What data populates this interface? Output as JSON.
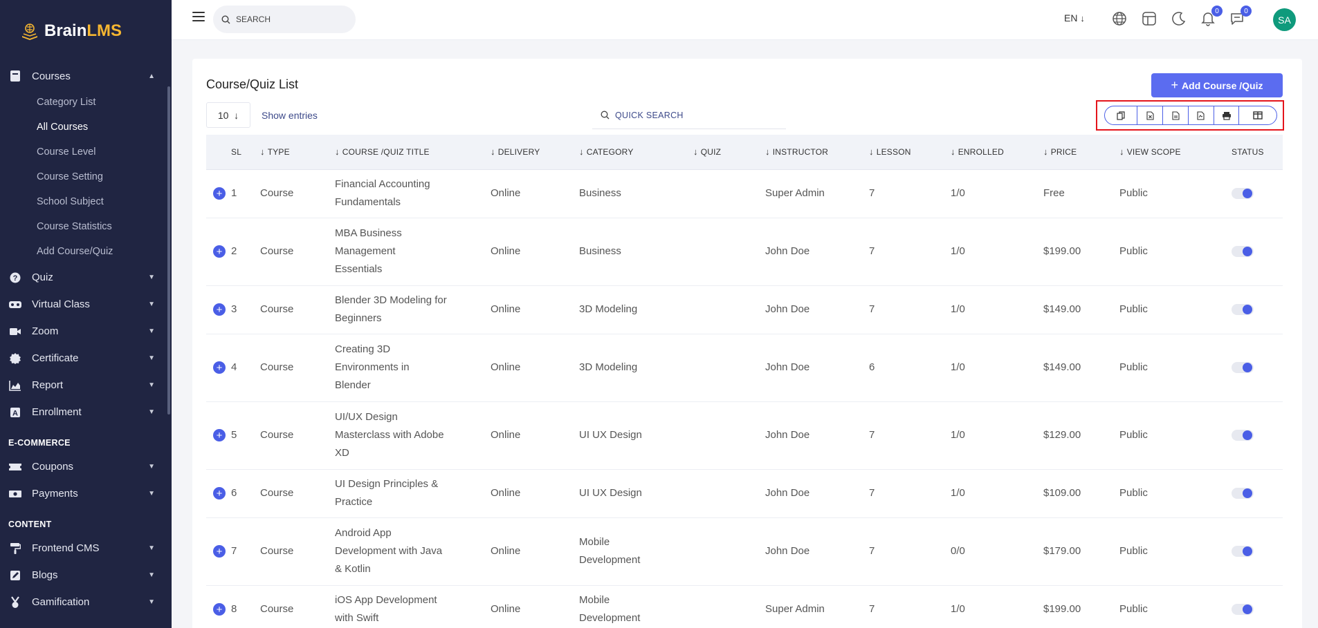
{
  "app": {
    "brand_main": "Brain",
    "brand_accent": "LMS",
    "accent_color": "#5b6cf0",
    "sidebar_bg": "#202542"
  },
  "sidebar": {
    "courses": {
      "label": "Courses",
      "icon": "book-icon"
    },
    "course_items": [
      "Category List",
      "All Courses",
      "Course Level",
      "Course Setting",
      "School Subject",
      "Course Statistics",
      "Add Course/Quiz"
    ],
    "active_item": "All Courses",
    "groups": [
      {
        "label": "Quiz",
        "icon": "question-circle-icon"
      },
      {
        "label": "Virtual Class",
        "icon": "vr-headset-icon"
      },
      {
        "label": "Zoom",
        "icon": "video-camera-icon"
      },
      {
        "label": "Certificate",
        "icon": "certificate-seal-icon"
      },
      {
        "label": "Report",
        "icon": "area-chart-icon"
      },
      {
        "label": "Enrollment",
        "icon": "letter-a-box-icon"
      }
    ],
    "ecommerce_title": "E-COMMERCE",
    "ecommerce": [
      {
        "label": "Coupons",
        "icon": "ticket-icon"
      },
      {
        "label": "Payments",
        "icon": "money-icon"
      }
    ],
    "content_title": "CONTENT",
    "content": [
      {
        "label": "Frontend CMS",
        "icon": "paint-roller-icon"
      },
      {
        "label": "Blogs",
        "icon": "edit-box-icon"
      },
      {
        "label": "Gamification",
        "icon": "medal-icon"
      }
    ]
  },
  "topbar": {
    "search_placeholder": "SEARCH",
    "language": "EN",
    "notifications_count": "0",
    "messages_count": "0",
    "avatar_initials": "SA"
  },
  "page": {
    "title": "Course/Quiz List",
    "add_button": "Add Course /Quiz",
    "entries_value": "10",
    "entries_label": "Show entries",
    "quick_search_placeholder": "QUICK SEARCH",
    "export_buttons": [
      "copy-icon",
      "excel-icon",
      "csv-icon",
      "pdf-icon",
      "print-icon",
      "columns-icon"
    ]
  },
  "table": {
    "headers": [
      "SL",
      "TYPE",
      "COURSE /QUIZ TITLE",
      "DELIVERY",
      "CATEGORY",
      "QUIZ",
      "INSTRUCTOR",
      "LESSON",
      "ENROLLED",
      "PRICE",
      "VIEW SCOPE",
      "STATUS"
    ],
    "rows": [
      {
        "sl": "1",
        "type": "Course",
        "title": [
          "Financial Accounting",
          "Fundamentals"
        ],
        "delivery": "Online",
        "category": [
          "Business"
        ],
        "quiz": "",
        "instructor": "Super Admin",
        "lesson": "7",
        "enrolled": "1/0",
        "price": "Free",
        "scope": "Public",
        "status": true
      },
      {
        "sl": "2",
        "type": "Course",
        "title": [
          "MBA Business",
          "Management",
          "Essentials"
        ],
        "delivery": "Online",
        "category": [
          "Business"
        ],
        "quiz": "",
        "instructor": "John Doe",
        "lesson": "7",
        "enrolled": "1/0",
        "price": "$199.00",
        "scope": "Public",
        "status": true
      },
      {
        "sl": "3",
        "type": "Course",
        "title": [
          "Blender 3D Modeling for",
          "Beginners"
        ],
        "delivery": "Online",
        "category": [
          "3D Modeling"
        ],
        "quiz": "",
        "instructor": "John Doe",
        "lesson": "7",
        "enrolled": "1/0",
        "price": "$149.00",
        "scope": "Public",
        "status": true
      },
      {
        "sl": "4",
        "type": "Course",
        "title": [
          "Creating 3D",
          "Environments in",
          "Blender"
        ],
        "delivery": "Online",
        "category": [
          "3D Modeling"
        ],
        "quiz": "",
        "instructor": "John Doe",
        "lesson": "6",
        "enrolled": "1/0",
        "price": "$149.00",
        "scope": "Public",
        "status": true
      },
      {
        "sl": "5",
        "type": "Course",
        "title": [
          "UI/UX Design",
          "Masterclass with Adobe",
          "XD"
        ],
        "delivery": "Online",
        "category": [
          "UI UX Design"
        ],
        "quiz": "",
        "instructor": "John Doe",
        "lesson": "7",
        "enrolled": "1/0",
        "price": "$129.00",
        "scope": "Public",
        "status": true
      },
      {
        "sl": "6",
        "type": "Course",
        "title": [
          "UI Design Principles &",
          "Practice"
        ],
        "delivery": "Online",
        "category": [
          "UI UX Design"
        ],
        "quiz": "",
        "instructor": "John Doe",
        "lesson": "7",
        "enrolled": "1/0",
        "price": "$109.00",
        "scope": "Public",
        "status": true
      },
      {
        "sl": "7",
        "type": "Course",
        "title": [
          "Android App",
          "Development with Java",
          "& Kotlin"
        ],
        "delivery": "Online",
        "category": [
          "Mobile",
          "Development"
        ],
        "quiz": "",
        "instructor": "John Doe",
        "lesson": "7",
        "enrolled": "0/0",
        "price": "$179.00",
        "scope": "Public",
        "status": true
      },
      {
        "sl": "8",
        "type": "Course",
        "title": [
          "iOS App Development",
          "with Swift"
        ],
        "delivery": "Online",
        "category": [
          "Mobile",
          "Development"
        ],
        "quiz": "",
        "instructor": "Super Admin",
        "lesson": "7",
        "enrolled": "1/0",
        "price": "$199.00",
        "scope": "Public",
        "status": true
      }
    ]
  }
}
